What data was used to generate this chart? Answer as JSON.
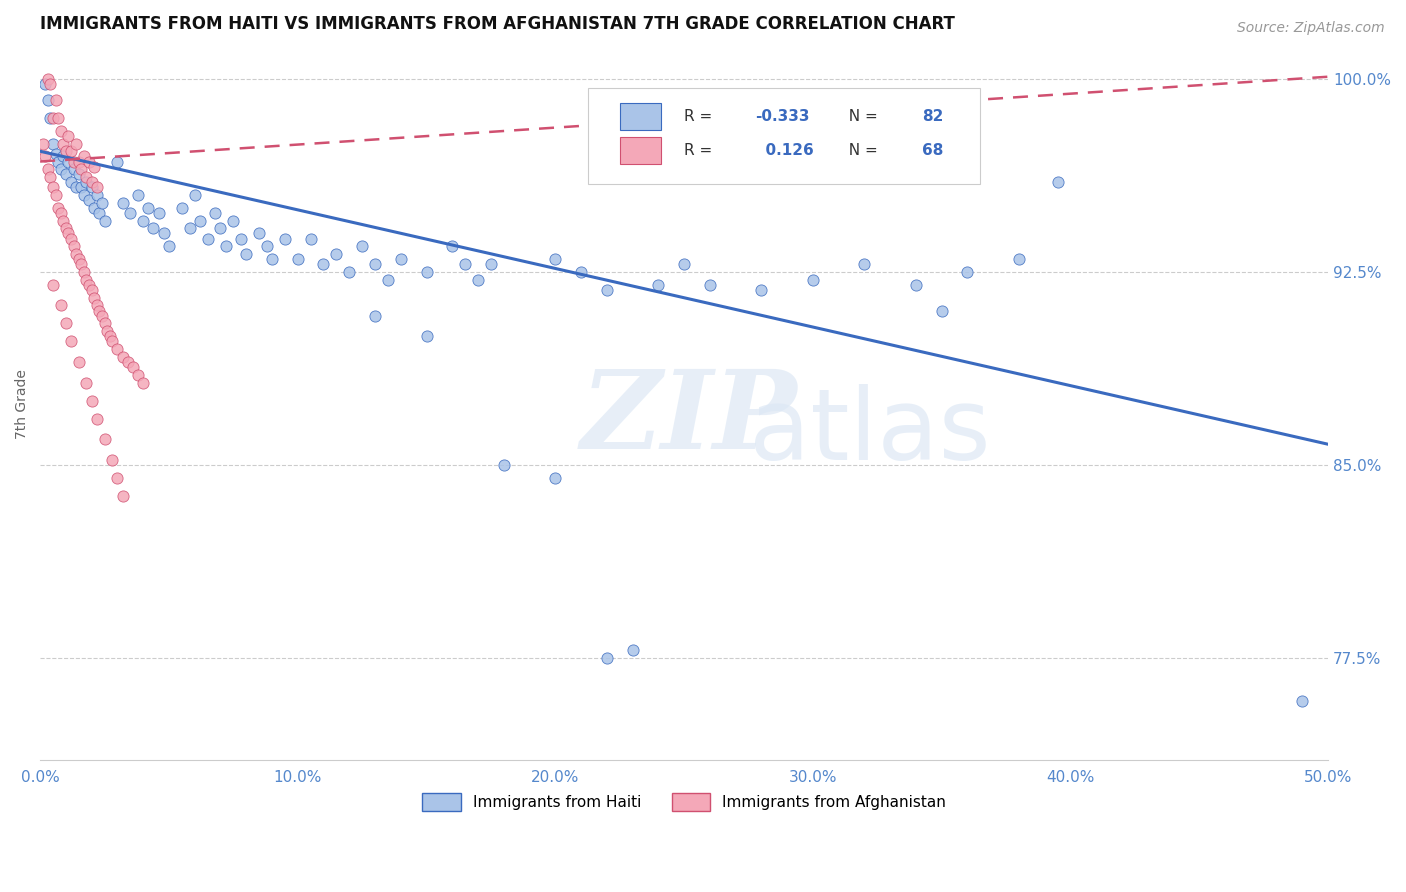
{
  "title": "IMMIGRANTS FROM HAITI VS IMMIGRANTS FROM AFGHANISTAN 7TH GRADE CORRELATION CHART",
  "source": "Source: ZipAtlas.com",
  "ylabel": "7th Grade",
  "watermark_zip": "ZIP",
  "watermark_atlas": "atlas",
  "xlim": [
    0.0,
    0.5
  ],
  "ylim": [
    0.735,
    1.012
  ],
  "xticks": [
    0.0,
    0.1,
    0.2,
    0.3,
    0.4,
    0.5
  ],
  "xticklabels": [
    "0.0%",
    "10.0%",
    "20.0%",
    "30.0%",
    "40.0%",
    "50.0%"
  ],
  "yticks": [
    0.775,
    0.85,
    0.925,
    1.0
  ],
  "yticklabels": [
    "77.5%",
    "85.0%",
    "92.5%",
    "100.0%"
  ],
  "r_haiti": -0.333,
  "n_haiti": 82,
  "r_afghanistan": 0.126,
  "n_afghanistan": 68,
  "haiti_color": "#aac4e8",
  "afghanistan_color": "#f4a8b8",
  "haiti_line_color": "#3a6abf",
  "afghanistan_line_color": "#d05070",
  "grid_color": "#cccccc",
  "axis_label_color": "#5588cc",
  "title_color": "#111111",
  "haiti_line_x0": 0.0,
  "haiti_line_y0": 0.972,
  "haiti_line_x1": 0.5,
  "haiti_line_y1": 0.858,
  "afghan_line_x0": 0.0,
  "afghan_line_y0": 0.968,
  "afghan_line_x1": 0.5,
  "afghan_line_y1": 1.001,
  "haiti_scatter": [
    [
      0.002,
      0.998
    ],
    [
      0.003,
      0.992
    ],
    [
      0.004,
      0.985
    ],
    [
      0.005,
      0.975
    ],
    [
      0.006,
      0.971
    ],
    [
      0.007,
      0.968
    ],
    [
      0.008,
      0.965
    ],
    [
      0.009,
      0.97
    ],
    [
      0.01,
      0.963
    ],
    [
      0.011,
      0.968
    ],
    [
      0.012,
      0.96
    ],
    [
      0.013,
      0.965
    ],
    [
      0.014,
      0.958
    ],
    [
      0.015,
      0.963
    ],
    [
      0.016,
      0.958
    ],
    [
      0.017,
      0.955
    ],
    [
      0.018,
      0.96
    ],
    [
      0.019,
      0.953
    ],
    [
      0.02,
      0.958
    ],
    [
      0.021,
      0.95
    ],
    [
      0.022,
      0.955
    ],
    [
      0.023,
      0.948
    ],
    [
      0.024,
      0.952
    ],
    [
      0.025,
      0.945
    ],
    [
      0.03,
      0.968
    ],
    [
      0.032,
      0.952
    ],
    [
      0.035,
      0.948
    ],
    [
      0.038,
      0.955
    ],
    [
      0.04,
      0.945
    ],
    [
      0.042,
      0.95
    ],
    [
      0.044,
      0.942
    ],
    [
      0.046,
      0.948
    ],
    [
      0.048,
      0.94
    ],
    [
      0.05,
      0.935
    ],
    [
      0.055,
      0.95
    ],
    [
      0.058,
      0.942
    ],
    [
      0.06,
      0.955
    ],
    [
      0.062,
      0.945
    ],
    [
      0.065,
      0.938
    ],
    [
      0.068,
      0.948
    ],
    [
      0.07,
      0.942
    ],
    [
      0.072,
      0.935
    ],
    [
      0.075,
      0.945
    ],
    [
      0.078,
      0.938
    ],
    [
      0.08,
      0.932
    ],
    [
      0.085,
      0.94
    ],
    [
      0.088,
      0.935
    ],
    [
      0.09,
      0.93
    ],
    [
      0.095,
      0.938
    ],
    [
      0.1,
      0.93
    ],
    [
      0.105,
      0.938
    ],
    [
      0.11,
      0.928
    ],
    [
      0.115,
      0.932
    ],
    [
      0.12,
      0.925
    ],
    [
      0.125,
      0.935
    ],
    [
      0.13,
      0.928
    ],
    [
      0.135,
      0.922
    ],
    [
      0.14,
      0.93
    ],
    [
      0.15,
      0.925
    ],
    [
      0.16,
      0.935
    ],
    [
      0.165,
      0.928
    ],
    [
      0.17,
      0.922
    ],
    [
      0.175,
      0.928
    ],
    [
      0.2,
      0.93
    ],
    [
      0.21,
      0.925
    ],
    [
      0.22,
      0.918
    ],
    [
      0.24,
      0.92
    ],
    [
      0.25,
      0.928
    ],
    [
      0.26,
      0.92
    ],
    [
      0.28,
      0.918
    ],
    [
      0.3,
      0.922
    ],
    [
      0.32,
      0.928
    ],
    [
      0.34,
      0.92
    ],
    [
      0.36,
      0.925
    ],
    [
      0.38,
      0.93
    ],
    [
      0.395,
      0.96
    ],
    [
      0.13,
      0.908
    ],
    [
      0.15,
      0.9
    ],
    [
      0.18,
      0.85
    ],
    [
      0.2,
      0.845
    ],
    [
      0.22,
      0.775
    ],
    [
      0.23,
      0.778
    ],
    [
      0.35,
      0.91
    ],
    [
      0.49,
      0.758
    ]
  ],
  "afghanistan_scatter": [
    [
      0.003,
      1.0
    ],
    [
      0.004,
      0.998
    ],
    [
      0.005,
      0.985
    ],
    [
      0.006,
      0.992
    ],
    [
      0.007,
      0.985
    ],
    [
      0.008,
      0.98
    ],
    [
      0.009,
      0.975
    ],
    [
      0.01,
      0.972
    ],
    [
      0.011,
      0.978
    ],
    [
      0.012,
      0.972
    ],
    [
      0.013,
      0.968
    ],
    [
      0.014,
      0.975
    ],
    [
      0.015,
      0.968
    ],
    [
      0.016,
      0.965
    ],
    [
      0.017,
      0.97
    ],
    [
      0.018,
      0.962
    ],
    [
      0.019,
      0.968
    ],
    [
      0.02,
      0.96
    ],
    [
      0.021,
      0.966
    ],
    [
      0.022,
      0.958
    ],
    [
      0.001,
      0.975
    ],
    [
      0.002,
      0.97
    ],
    [
      0.003,
      0.965
    ],
    [
      0.004,
      0.962
    ],
    [
      0.005,
      0.958
    ],
    [
      0.006,
      0.955
    ],
    [
      0.007,
      0.95
    ],
    [
      0.008,
      0.948
    ],
    [
      0.009,
      0.945
    ],
    [
      0.01,
      0.942
    ],
    [
      0.011,
      0.94
    ],
    [
      0.012,
      0.938
    ],
    [
      0.013,
      0.935
    ],
    [
      0.014,
      0.932
    ],
    [
      0.015,
      0.93
    ],
    [
      0.016,
      0.928
    ],
    [
      0.017,
      0.925
    ],
    [
      0.018,
      0.922
    ],
    [
      0.019,
      0.92
    ],
    [
      0.02,
      0.918
    ],
    [
      0.021,
      0.915
    ],
    [
      0.022,
      0.912
    ],
    [
      0.023,
      0.91
    ],
    [
      0.024,
      0.908
    ],
    [
      0.025,
      0.905
    ],
    [
      0.026,
      0.902
    ],
    [
      0.027,
      0.9
    ],
    [
      0.028,
      0.898
    ],
    [
      0.03,
      0.895
    ],
    [
      0.032,
      0.892
    ],
    [
      0.034,
      0.89
    ],
    [
      0.036,
      0.888
    ],
    [
      0.038,
      0.885
    ],
    [
      0.04,
      0.882
    ],
    [
      0.005,
      0.92
    ],
    [
      0.008,
      0.912
    ],
    [
      0.01,
      0.905
    ],
    [
      0.012,
      0.898
    ],
    [
      0.015,
      0.89
    ],
    [
      0.018,
      0.882
    ],
    [
      0.02,
      0.875
    ],
    [
      0.022,
      0.868
    ],
    [
      0.025,
      0.86
    ],
    [
      0.028,
      0.852
    ],
    [
      0.03,
      0.845
    ],
    [
      0.032,
      0.838
    ]
  ]
}
